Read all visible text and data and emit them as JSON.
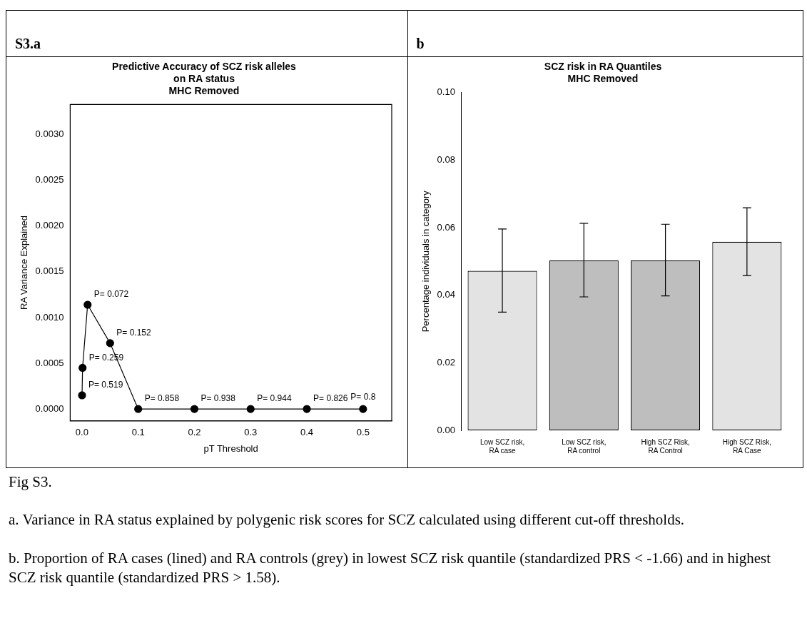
{
  "chart_data": [
    {
      "type": "line",
      "title": "Predictive Accuracy of SCZ risk alleles\non RA status\nMHC Removed",
      "xlabel": "pT Threshold",
      "ylabel": "RA Variance Explained",
      "x": [
        0.0001,
        0.001,
        0.01,
        0.05,
        0.1,
        0.2,
        0.3,
        0.4,
        0.5
      ],
      "series": [
        {
          "color": "#000000",
          "values": [
            0.00015,
            0.00045,
            0.00114,
            0.00072,
            0.0,
            0.0,
            0.0,
            0.0,
            0.0
          ]
        }
      ],
      "marker": "circle",
      "line_style": "solid",
      "xlim": [
        -0.021,
        0.551
      ],
      "xticks": [
        {
          "value": 0,
          "label": "0.0"
        },
        0.1,
        0.2,
        0.3,
        0.4,
        0.5
      ],
      "ylim": [
        -0.00013,
        0.00333
      ],
      "yticks": [
        {
          "value": 0,
          "label": "0.0000"
        },
        0.0005,
        {
          "value": 0.001,
          "label": "0.0010"
        },
        0.0015,
        {
          "value": 0.002,
          "label": "0.0020"
        },
        0.0025,
        {
          "value": 0.003,
          "label": "0.0030"
        }
      ],
      "grid": false,
      "legend": false,
      "annotations": [
        "S3.a",
        {
          "text": "P= 0.519",
          "x": 0.0001,
          "y": 0.00015
        },
        {
          "text": "P= 0.259",
          "x": 0.001,
          "y": 0.00045
        },
        {
          "text": "P= 0.072",
          "x": 0.01,
          "y": 0.00114
        },
        {
          "text": "P= 0.152",
          "x": 0.05,
          "y": 0.00072
        },
        {
          "text": "P= 0.858",
          "x": 0.1,
          "y": 0.0
        },
        {
          "text": "P= 0.938",
          "x": 0.2,
          "y": 0.0
        },
        {
          "text": "P= 0.944",
          "x": 0.3,
          "y": 0.0
        },
        {
          "text": "P= 0.826",
          "x": 0.4,
          "y": 0.0
        },
        {
          "text": "P= 0.8",
          "x": 0.5,
          "y": 0.0
        }
      ]
    },
    {
      "type": "bar",
      "title": "SCZ risk in RA Quantiles\nMHC Removed",
      "ylabel": "Percentage individuals in category",
      "categories": [
        "Low SCZ risk,\nRA case",
        "Low SCZ risk,\nRA control",
        "High SCZ Risk,\nRA Control",
        "High SCZ Risk,\nRA Case"
      ],
      "values": [
        0.0472,
        0.0503,
        0.0503,
        0.0558
      ],
      "colors": [
        "#e3e3e3",
        "#bebebe",
        "#bebebe",
        "#e3e3e3"
      ],
      "errors": [
        [
          0.035,
          0.0596
        ],
        [
          0.0395,
          0.0613
        ],
        [
          0.0398,
          0.061
        ],
        [
          0.0458,
          0.0659
        ]
      ],
      "ylim": [
        0,
        0.1
      ],
      "yticks": [
        {
          "value": 0,
          "label": "0.00"
        },
        0.02,
        0.04,
        0.06,
        0.08,
        {
          "value": 0.1,
          "label": "0.10"
        }
      ],
      "grid": false,
      "legend": false,
      "annotations": [
        "b",
        "Fig S3.",
        "a. Variance in RA status explained by polygenic risk scores for SCZ calculated using different cut-off thresholds.",
        "b. Proportion of RA cases (lined) and RA controls (grey) in lowest SCZ risk quantile (standardized PRS <  -1.66) and in highest SCZ risk quantile (standardized PRS > 1.58)."
      ]
    }
  ]
}
